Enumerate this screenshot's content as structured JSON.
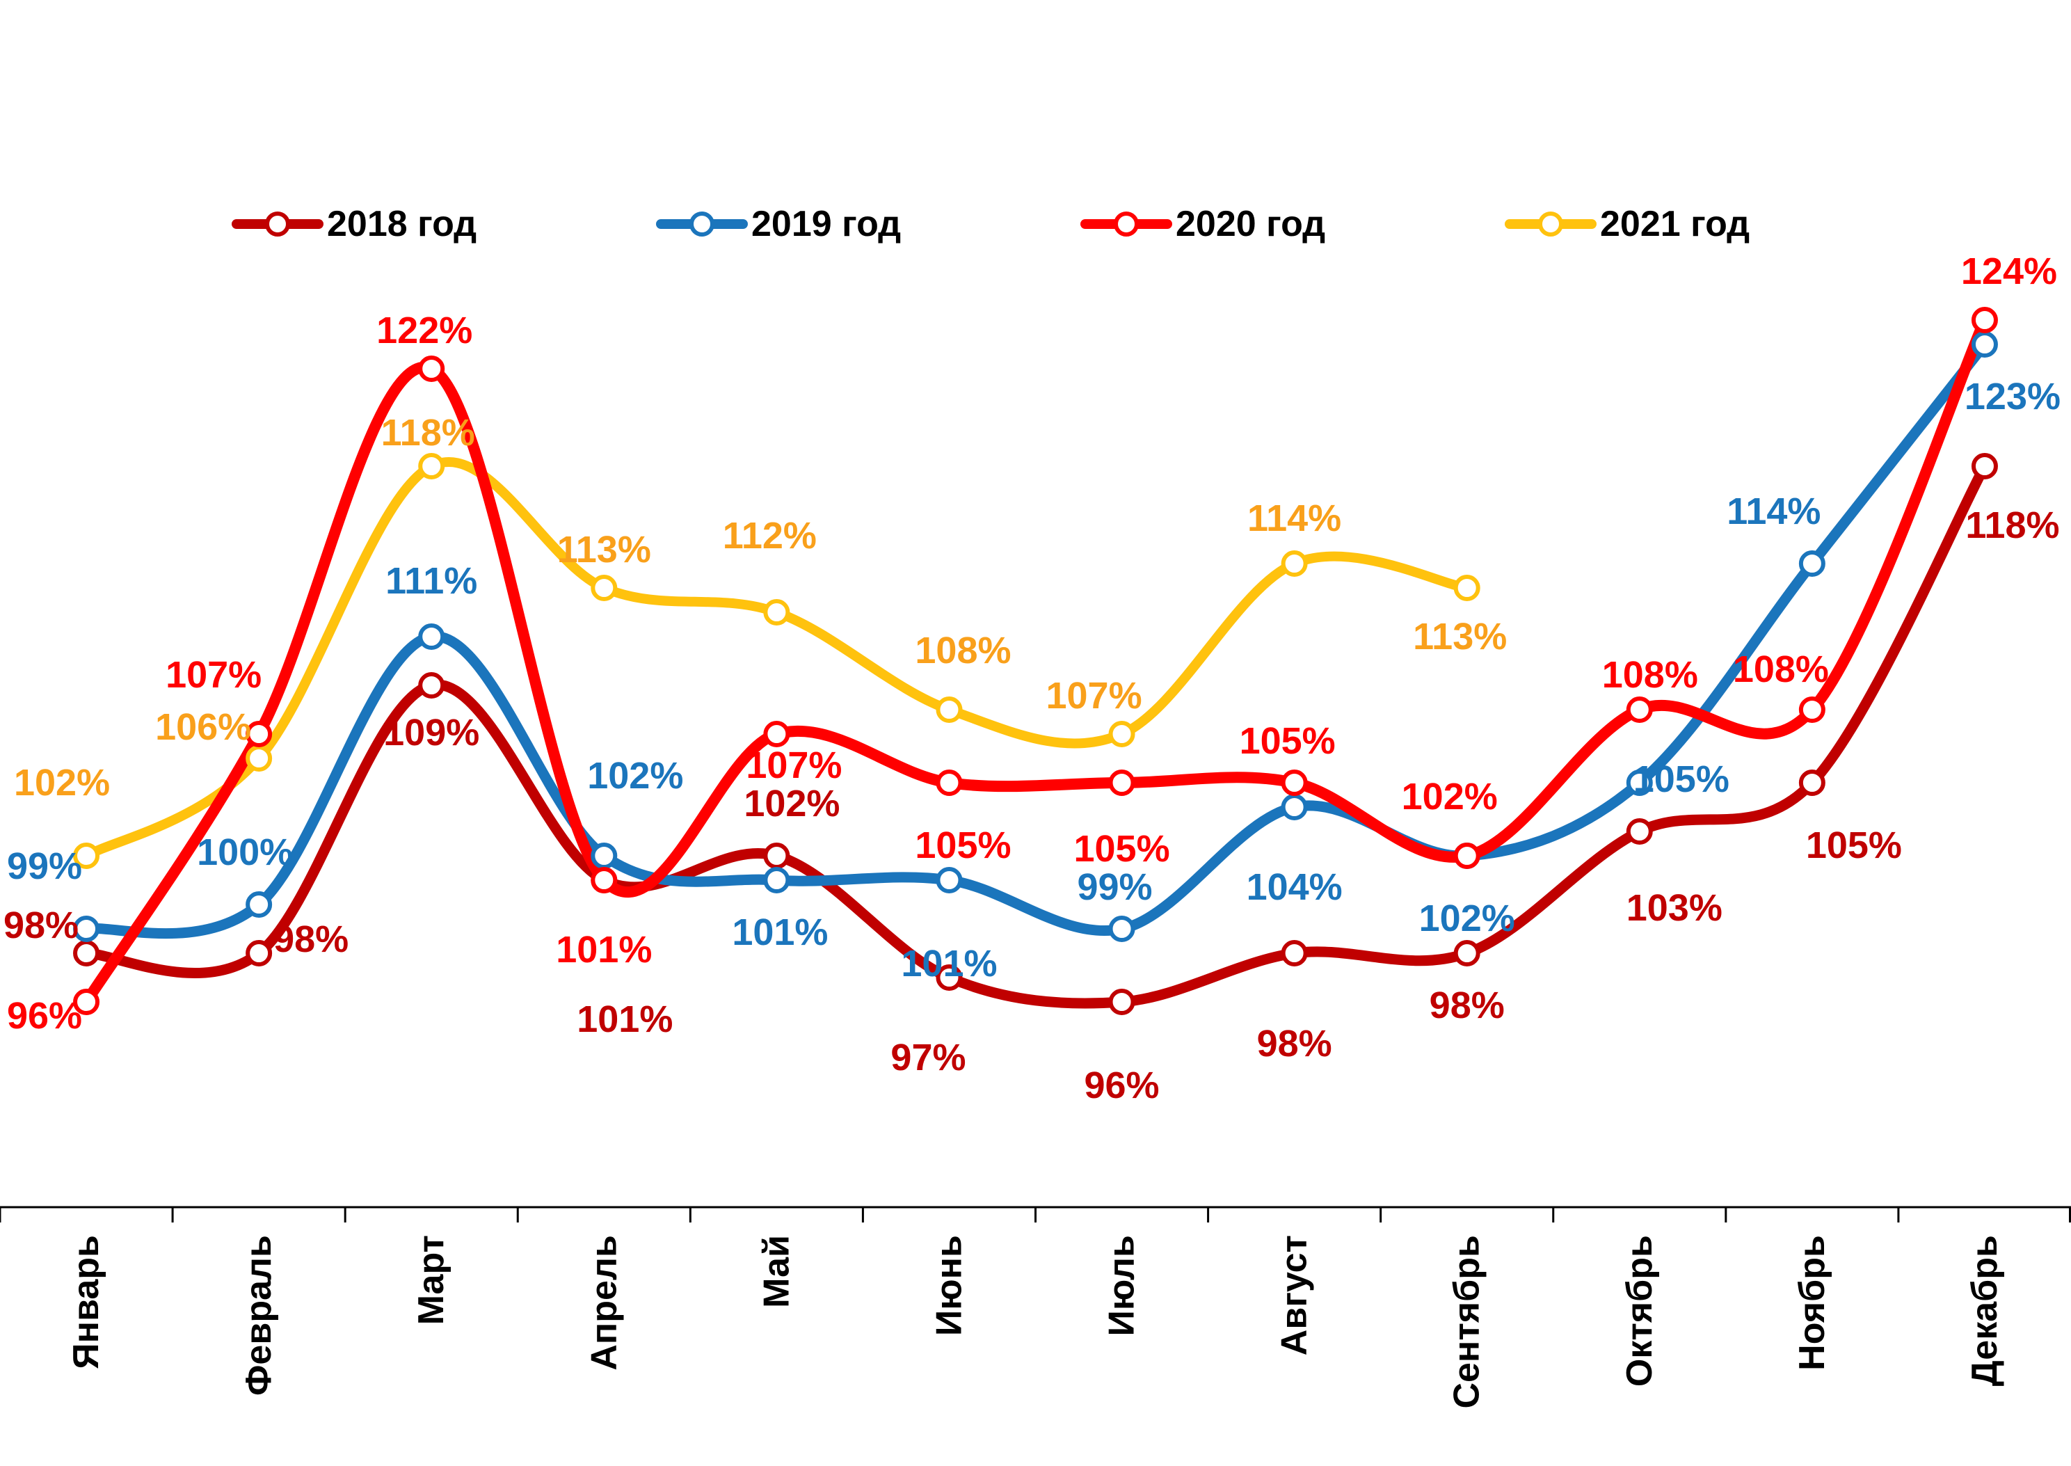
{
  "chart_data": {
    "type": "line",
    "title": "",
    "unit": "%",
    "smooth": true,
    "grid": false,
    "legend_position": "top",
    "categories": [
      "Январь",
      "Февраль",
      "Март",
      "Апрель",
      "Май",
      "Июнь",
      "Июль",
      "Август",
      "Сентябрь",
      "Октябрь",
      "Ноябрь",
      "Декабрь"
    ],
    "ylim": [
      83,
      131
    ],
    "series": [
      {
        "name": "2018 год",
        "color": "#C00000",
        "label_color": "#C00000",
        "values": [
          98,
          98,
          109,
          101,
          102,
          97,
          96,
          98,
          98,
          103,
          105,
          118
        ]
      },
      {
        "name": "2019 год",
        "color": "#1B75BC",
        "label_color": "#1B75BC",
        "values": [
          99,
          100,
          111,
          102,
          101,
          101,
          99,
          104,
          102,
          105,
          114,
          123
        ]
      },
      {
        "name": "2020 год",
        "color": "#FF0000",
        "label_color": "#FF0000",
        "values": [
          96,
          107,
          122,
          101,
          107,
          105,
          105,
          105,
          102,
          108,
          108,
          124
        ]
      },
      {
        "name": "2021 год",
        "color": "#FFC20E",
        "label_color": "#F9A01B",
        "values": [
          102,
          106,
          118,
          113,
          112,
          108,
          107,
          114,
          113,
          null,
          null,
          null
        ]
      }
    ]
  }
}
